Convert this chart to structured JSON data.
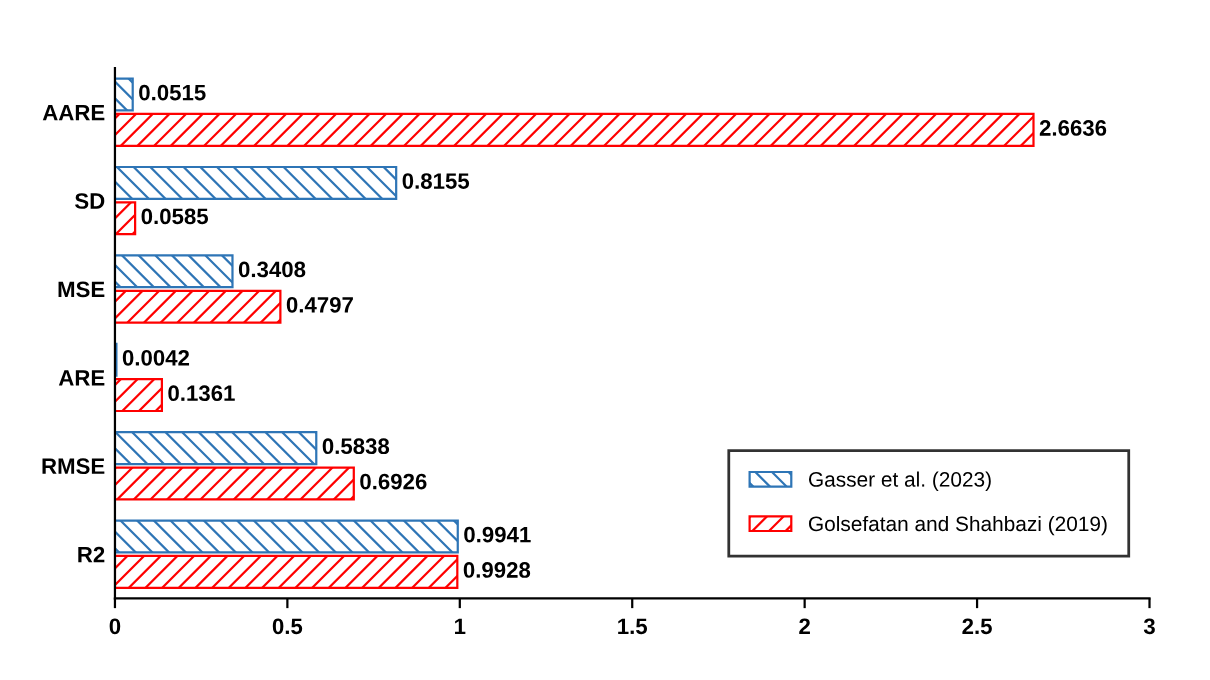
{
  "chart_data": {
    "type": "bar",
    "orientation": "horizontal",
    "categories": [
      "AARE",
      "SD",
      "MSE",
      "ARE",
      "RMSE",
      "R2"
    ],
    "series": [
      {
        "name": "Gasser et al. (2023)",
        "color": "#2e75b6",
        "values": [
          0.0515,
          0.8155,
          0.3408,
          0.0042,
          0.5838,
          0.9941
        ]
      },
      {
        "name": "Golsefatan and Shahbazi (2019)",
        "color": "#ff0000",
        "values": [
          2.6636,
          0.0585,
          0.4797,
          0.1361,
          0.6926,
          0.9928
        ]
      }
    ],
    "xlim": [
      0,
      3
    ],
    "xticks": [
      0,
      0.5,
      1,
      1.5,
      2,
      2.5,
      3
    ],
    "data_labels": true,
    "grid": false,
    "legend": "bottom right"
  }
}
